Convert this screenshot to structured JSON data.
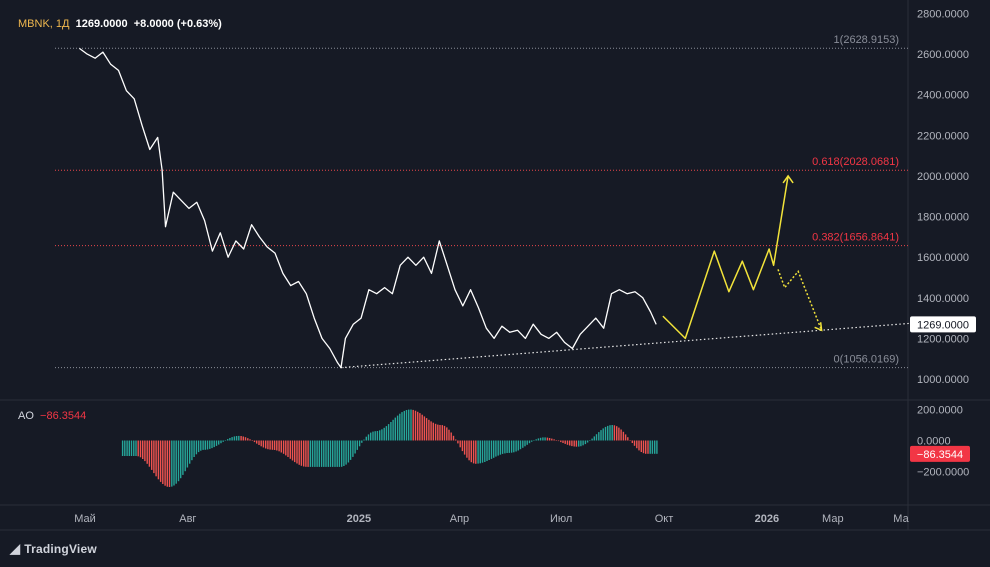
{
  "header": {
    "symbol": "MBNK",
    "interval": "1Д",
    "price": "1269.0000",
    "change": "+8.0000 (+0.63%)"
  },
  "ao_header": {
    "label": "AO",
    "value": "−86.3544"
  },
  "branding": {
    "name": "TradingView"
  },
  "colors": {
    "background": "#161a25",
    "price_line": "#ffffff",
    "projection": "#f2e33a",
    "fib_line": "#e8464b",
    "ao_up": "#26a69a",
    "ao_down": "#ef5350",
    "label_red": "#f23645",
    "grid": "#2a2e39"
  },
  "chart_data": [
    {
      "type": "line",
      "title": "MBNK, 1Д",
      "x_tick_labels": [
        "Май",
        "Авг",
        "2025",
        "Апр",
        "Июл",
        "Окт",
        "2026",
        "Мар",
        "Ма"
      ],
      "y_tick_labels": [
        "2800.0000",
        "2600.0000",
        "2400.0000",
        "2200.0000",
        "2000.0000",
        "1800.0000",
        "1600.0000",
        "1400.0000",
        "1200.0000",
        "1000.0000"
      ],
      "ylim": [
        920,
        2810
      ],
      "current_price_label": "1269.0000",
      "fib_levels": [
        {
          "label": "1(2628.9153)",
          "value": 2628.9153
        },
        {
          "label": "0.618(2028.0681)",
          "value": 2028.0681
        },
        {
          "label": "0.382(1656.8641)",
          "value": 1656.8641
        },
        {
          "label": "0(1056.0169)",
          "value": 1056.0169
        }
      ],
      "series": [
        {
          "values": [
            {
              "x": "2024-04-26",
              "y": 2628
            },
            {
              "x": "2024-05-03",
              "y": 2600
            },
            {
              "x": "2024-05-10",
              "y": 2580
            },
            {
              "x": "2024-05-17",
              "y": 2610
            },
            {
              "x": "2024-05-24",
              "y": 2550
            },
            {
              "x": "2024-05-31",
              "y": 2520
            },
            {
              "x": "2024-06-07",
              "y": 2420
            },
            {
              "x": "2024-06-14",
              "y": 2380
            },
            {
              "x": "2024-06-21",
              "y": 2250
            },
            {
              "x": "2024-06-28",
              "y": 2130
            },
            {
              "x": "2024-07-05",
              "y": 2190
            },
            {
              "x": "2024-07-09",
              "y": 2030
            },
            {
              "x": "2024-07-12",
              "y": 1750
            },
            {
              "x": "2024-07-19",
              "y": 1920
            },
            {
              "x": "2024-07-26",
              "y": 1880
            },
            {
              "x": "2024-08-02",
              "y": 1840
            },
            {
              "x": "2024-08-09",
              "y": 1870
            },
            {
              "x": "2024-08-16",
              "y": 1780
            },
            {
              "x": "2024-08-23",
              "y": 1630
            },
            {
              "x": "2024-08-30",
              "y": 1720
            },
            {
              "x": "2024-09-06",
              "y": 1600
            },
            {
              "x": "2024-09-13",
              "y": 1680
            },
            {
              "x": "2024-09-20",
              "y": 1640
            },
            {
              "x": "2024-09-27",
              "y": 1760
            },
            {
              "x": "2024-10-04",
              "y": 1700
            },
            {
              "x": "2024-10-11",
              "y": 1650
            },
            {
              "x": "2024-10-18",
              "y": 1620
            },
            {
              "x": "2024-10-25",
              "y": 1520
            },
            {
              "x": "2024-11-01",
              "y": 1460
            },
            {
              "x": "2024-11-08",
              "y": 1480
            },
            {
              "x": "2024-11-15",
              "y": 1420
            },
            {
              "x": "2024-11-22",
              "y": 1300
            },
            {
              "x": "2024-11-29",
              "y": 1200
            },
            {
              "x": "2024-12-06",
              "y": 1150
            },
            {
              "x": "2024-12-13",
              "y": 1080
            },
            {
              "x": "2024-12-16",
              "y": 1056
            },
            {
              "x": "2024-12-20",
              "y": 1200
            },
            {
              "x": "2024-12-27",
              "y": 1270
            },
            {
              "x": "2025-01-03",
              "y": 1300
            },
            {
              "x": "2025-01-10",
              "y": 1440
            },
            {
              "x": "2025-01-17",
              "y": 1420
            },
            {
              "x": "2025-01-24",
              "y": 1450
            },
            {
              "x": "2025-01-31",
              "y": 1420
            },
            {
              "x": "2025-02-07",
              "y": 1560
            },
            {
              "x": "2025-02-14",
              "y": 1600
            },
            {
              "x": "2025-02-21",
              "y": 1560
            },
            {
              "x": "2025-02-28",
              "y": 1600
            },
            {
              "x": "2025-03-07",
              "y": 1520
            },
            {
              "x": "2025-03-14",
              "y": 1680
            },
            {
              "x": "2025-03-21",
              "y": 1560
            },
            {
              "x": "2025-03-28",
              "y": 1440
            },
            {
              "x": "2025-04-04",
              "y": 1360
            },
            {
              "x": "2025-04-11",
              "y": 1440
            },
            {
              "x": "2025-04-18",
              "y": 1350
            },
            {
              "x": "2025-04-25",
              "y": 1250
            },
            {
              "x": "2025-05-02",
              "y": 1200
            },
            {
              "x": "2025-05-09",
              "y": 1260
            },
            {
              "x": "2025-05-16",
              "y": 1230
            },
            {
              "x": "2025-05-23",
              "y": 1240
            },
            {
              "x": "2025-05-30",
              "y": 1200
            },
            {
              "x": "2025-06-06",
              "y": 1270
            },
            {
              "x": "2025-06-13",
              "y": 1220
            },
            {
              "x": "2025-06-20",
              "y": 1200
            },
            {
              "x": "2025-06-27",
              "y": 1230
            },
            {
              "x": "2025-07-04",
              "y": 1180
            },
            {
              "x": "2025-07-11",
              "y": 1150
            },
            {
              "x": "2025-07-18",
              "y": 1220
            },
            {
              "x": "2025-07-25",
              "y": 1260
            },
            {
              "x": "2025-08-01",
              "y": 1300
            },
            {
              "x": "2025-08-08",
              "y": 1250
            },
            {
              "x": "2025-08-15",
              "y": 1420
            },
            {
              "x": "2025-08-22",
              "y": 1440
            },
            {
              "x": "2025-08-29",
              "y": 1420
            },
            {
              "x": "2025-09-05",
              "y": 1430
            },
            {
              "x": "2025-09-12",
              "y": 1400
            },
            {
              "x": "2025-09-19",
              "y": 1330
            },
            {
              "x": "2025-09-24",
              "y": 1269
            }
          ]
        }
      ],
      "support_line": [
        {
          "x": "2024-12-16",
          "y": 1056
        },
        {
          "x": "2026-06-15",
          "y": 1290
        }
      ],
      "projection_solid": [
        {
          "x": "2025-09-30",
          "y": 1310
        },
        {
          "x": "2025-10-20",
          "y": 1200
        },
        {
          "x": "2025-11-15",
          "y": 1630
        },
        {
          "x": "2025-11-28",
          "y": 1430
        },
        {
          "x": "2025-12-10",
          "y": 1580
        },
        {
          "x": "2025-12-20",
          "y": 1440
        },
        {
          "x": "2026-01-03",
          "y": 1640
        },
        {
          "x": "2026-01-07",
          "y": 1560
        },
        {
          "x": "2026-01-20",
          "y": 2000
        }
      ],
      "projection_dotted": [
        {
          "x": "2026-01-11",
          "y": 1540
        },
        {
          "x": "2026-01-17",
          "y": 1450
        },
        {
          "x": "2026-01-29",
          "y": 1530
        },
        {
          "x": "2026-02-19",
          "y": 1240
        }
      ]
    },
    {
      "type": "bar",
      "title": "AO",
      "y_tick_labels": [
        "200.0000",
        "0.0000",
        "−200.0000"
      ],
      "ylim": [
        -350,
        230
      ],
      "current_value_label": "−86.3544",
      "x": [
        "2024-06",
        "2024-07",
        "2024-08",
        "2024-09",
        "2024-10",
        "2024-11",
        "2024-12",
        "2025-01",
        "2025-02",
        "2025-03",
        "2025-04",
        "2025-05",
        "2025-06",
        "2025-07",
        "2025-08",
        "2025-09"
      ],
      "values": [
        -100,
        -300,
        -60,
        30,
        -60,
        -170,
        -170,
        60,
        200,
        100,
        -150,
        -80,
        20,
        -40,
        100,
        -86
      ]
    }
  ]
}
